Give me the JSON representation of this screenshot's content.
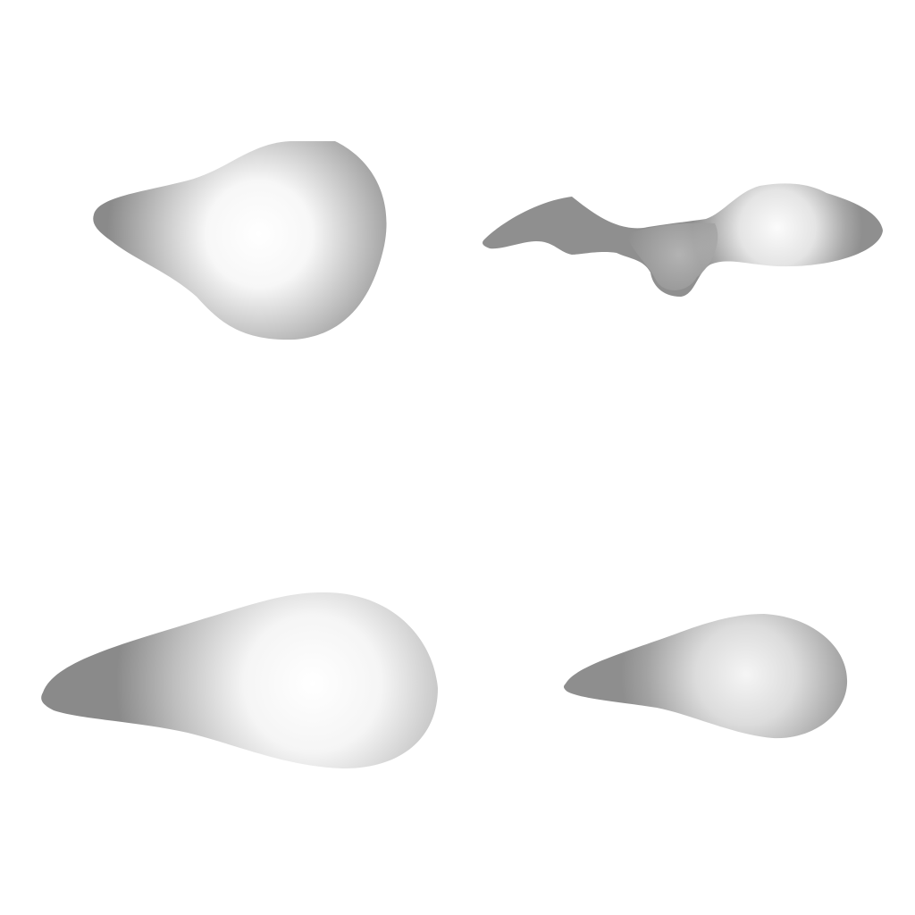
{
  "canvas": {
    "background": "#ffffff"
  },
  "blob_style": {
    "center_color": "#ffffff",
    "edge_color": "#8e8e8e"
  },
  "blobs": [
    {
      "name": "blob-top-left",
      "shape": "rounded teardrop"
    },
    {
      "name": "blob-top-right",
      "shape": "irregular wavy elongated"
    },
    {
      "name": "blob-bottom-left",
      "shape": "long teardrop"
    },
    {
      "name": "blob-bottom-right",
      "shape": "small teardrop"
    }
  ]
}
